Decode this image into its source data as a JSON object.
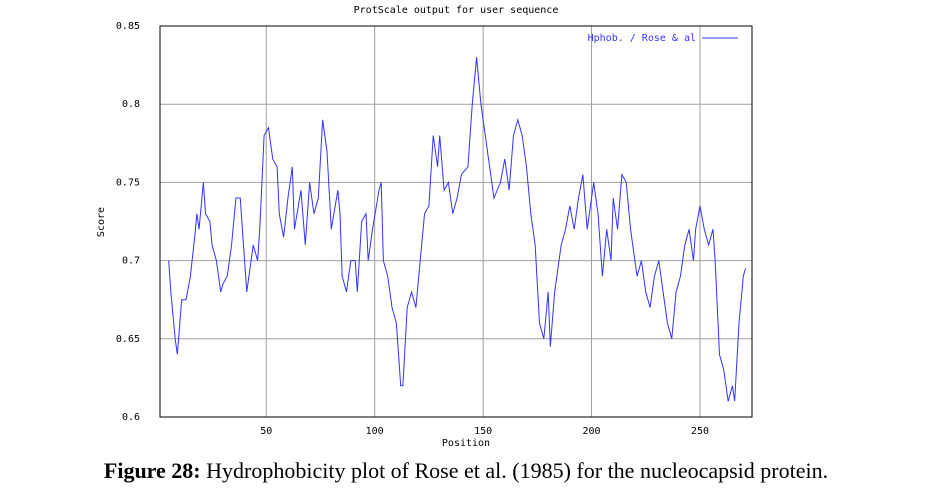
{
  "chart_data": {
    "type": "line",
    "title": "ProtScale output for user sequence",
    "xlabel": "Position",
    "ylabel": "Score",
    "x": [
      5,
      6,
      8,
      9,
      11,
      13,
      15,
      17,
      18,
      19,
      21,
      22,
      24,
      25,
      27,
      29,
      30,
      32,
      34,
      36,
      38,
      40,
      41,
      44,
      46,
      47,
      49,
      51,
      53,
      55,
      56,
      58,
      60,
      62,
      63,
      66,
      68,
      70,
      72,
      74,
      76,
      78,
      80,
      83,
      84,
      85,
      87,
      89,
      91,
      92,
      94,
      96,
      97,
      99,
      102,
      103,
      104,
      106,
      108,
      110,
      112,
      113,
      115,
      117,
      119,
      121,
      123,
      125,
      127,
      129,
      130,
      132,
      134,
      136,
      138,
      140,
      143,
      145,
      147,
      149,
      151,
      153,
      155,
      158,
      160,
      162,
      164,
      166,
      168,
      170,
      172,
      174,
      176,
      178,
      180,
      181,
      183,
      185,
      186,
      188,
      190,
      192,
      194,
      196,
      198,
      199,
      201,
      203,
      205,
      207,
      209,
      210,
      212,
      214,
      216,
      218,
      220,
      221,
      223,
      225,
      227,
      229,
      231,
      233,
      235,
      237,
      239,
      241,
      243,
      245,
      247,
      248,
      250,
      252,
      254,
      256,
      257,
      259,
      261,
      263,
      265,
      266,
      268,
      270,
      271
    ],
    "series": [
      {
        "name": "Hphob. / Rose & al",
        "color": "#3333ff",
        "values": [
          0.7,
          0.68,
          0.65,
          0.64,
          0.675,
          0.675,
          0.69,
          0.715,
          0.73,
          0.72,
          0.75,
          0.73,
          0.725,
          0.71,
          0.7,
          0.68,
          0.685,
          0.69,
          0.71,
          0.74,
          0.74,
          0.7,
          0.68,
          0.71,
          0.7,
          0.72,
          0.78,
          0.785,
          0.765,
          0.76,
          0.73,
          0.715,
          0.74,
          0.76,
          0.72,
          0.745,
          0.71,
          0.75,
          0.73,
          0.74,
          0.79,
          0.77,
          0.72,
          0.745,
          0.73,
          0.69,
          0.68,
          0.7,
          0.7,
          0.68,
          0.725,
          0.73,
          0.7,
          0.72,
          0.745,
          0.75,
          0.7,
          0.69,
          0.67,
          0.66,
          0.62,
          0.62,
          0.67,
          0.68,
          0.67,
          0.7,
          0.73,
          0.735,
          0.78,
          0.76,
          0.78,
          0.745,
          0.75,
          0.73,
          0.74,
          0.755,
          0.76,
          0.8,
          0.83,
          0.8,
          0.78,
          0.76,
          0.74,
          0.75,
          0.765,
          0.745,
          0.78,
          0.79,
          0.78,
          0.76,
          0.73,
          0.71,
          0.66,
          0.65,
          0.68,
          0.645,
          0.68,
          0.7,
          0.71,
          0.72,
          0.735,
          0.72,
          0.74,
          0.755,
          0.72,
          0.73,
          0.75,
          0.73,
          0.69,
          0.72,
          0.7,
          0.74,
          0.72,
          0.755,
          0.75,
          0.72,
          0.7,
          0.69,
          0.7,
          0.68,
          0.67,
          0.69,
          0.7,
          0.68,
          0.66,
          0.65,
          0.68,
          0.69,
          0.71,
          0.72,
          0.7,
          0.72,
          0.735,
          0.72,
          0.71,
          0.72,
          0.7,
          0.64,
          0.63,
          0.61,
          0.62,
          0.61,
          0.66,
          0.69,
          0.695
        ]
      }
    ],
    "xlim": [
      1,
      274
    ],
    "ylim": [
      0.6,
      0.85
    ],
    "xticks": [
      50,
      100,
      150,
      200,
      250
    ],
    "yticks": [
      0.6,
      0.65,
      0.7,
      0.75,
      0.8,
      0.85
    ],
    "grid": true,
    "legend": "upper right"
  },
  "caption": {
    "label": "Figure 28:",
    "text": "Hydrophobicity plot of Rose et al. (1985) for the nucleocapsid protein."
  }
}
